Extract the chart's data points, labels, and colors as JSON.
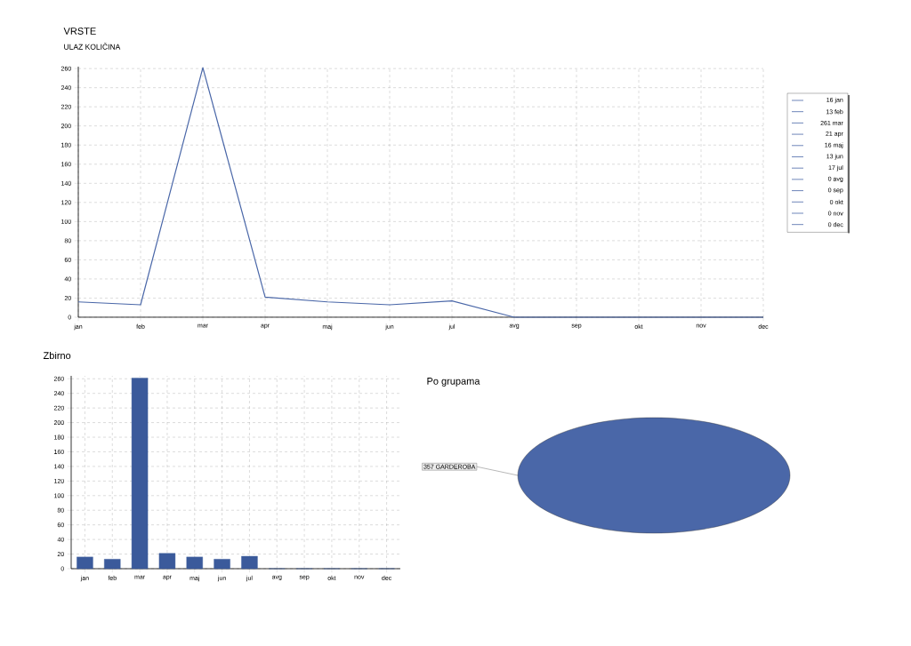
{
  "chart_data": [
    {
      "type": "line",
      "title": "VRSTE",
      "subtitle": "ULAZ KOLIČINA",
      "categories": [
        "jan",
        "feb",
        "mar",
        "apr",
        "maj",
        "jun",
        "jul",
        "avg",
        "sep",
        "okt",
        "nov",
        "dec"
      ],
      "series": [
        {
          "color": "#4a67a8",
          "values": [
            16,
            13,
            261,
            21,
            16,
            13,
            17,
            0,
            0,
            0,
            0,
            0
          ]
        }
      ],
      "ylim": [
        0,
        262
      ],
      "yticks": [
        0,
        20,
        40,
        60,
        80,
        100,
        120,
        140,
        160,
        180,
        200,
        220,
        240,
        260
      ],
      "grid": true,
      "annotations": [
        "16 jan",
        "13 feb",
        "261 mar",
        "21 apr",
        "16 maj",
        "13 jun",
        "17 jul",
        "0 avg",
        "0 sep",
        "0 okt",
        "0 nov",
        "0 dec"
      ]
    },
    {
      "type": "bar",
      "title": "Zbirno",
      "categories": [
        "jan",
        "feb",
        "mar",
        "apr",
        "maj",
        "jun",
        "jul",
        "avg",
        "sep",
        "okt",
        "nov",
        "dec"
      ],
      "values": [
        16,
        13,
        261,
        21,
        16,
        13,
        17,
        0,
        0,
        0,
        0,
        0
      ],
      "color": "#3b5a9b",
      "ylim": [
        0,
        264
      ],
      "yticks": [
        0,
        20,
        40,
        60,
        80,
        100,
        120,
        140,
        160,
        180,
        200,
        220,
        240,
        260
      ],
      "grid": true
    },
    {
      "type": "pie",
      "title": "Po grupama",
      "categories": [
        "GARDEROBA"
      ],
      "values": [
        357
      ],
      "colors": [
        "#4a67a8"
      ],
      "data_labels": true
    }
  ]
}
